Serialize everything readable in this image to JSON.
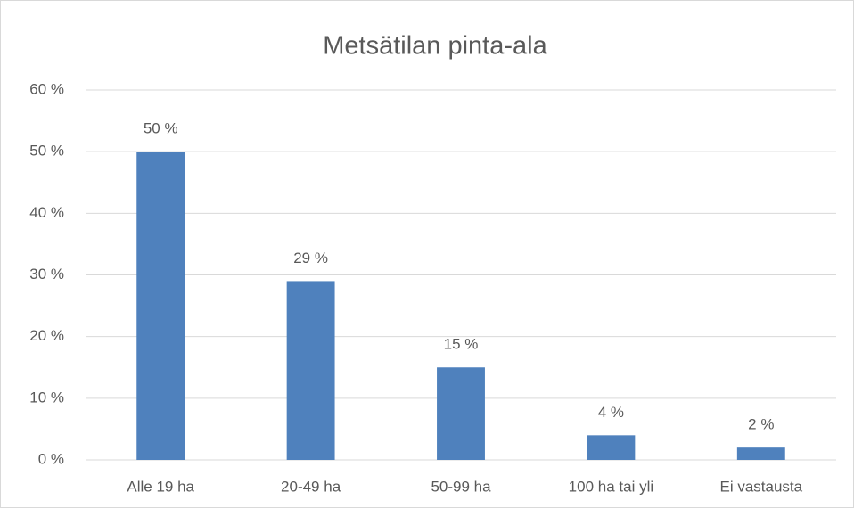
{
  "chart_data": {
    "type": "bar",
    "title": "Metsätilan pinta-ala",
    "categories": [
      "Alle 19 ha",
      "20-49 ha",
      "50-99 ha",
      "100 ha tai yli",
      "Ei vastausta"
    ],
    "values": [
      50,
      29,
      15,
      4,
      2
    ],
    "value_labels": [
      "50 %",
      "29 %",
      "15 %",
      "4 %",
      "2 %"
    ],
    "color": "#4f81bd",
    "ylim": [
      0,
      60
    ],
    "yticks": [
      {
        "value": 0,
        "label": "0 %"
      },
      {
        "value": 10,
        "label": "10 %"
      },
      {
        "value": 20,
        "label": "20 %"
      },
      {
        "value": 30,
        "label": "30 %"
      },
      {
        "value": 40,
        "label": "40 %"
      },
      {
        "value": 50,
        "label": "50 %"
      },
      {
        "value": 60,
        "label": "60 %"
      }
    ],
    "grid": true
  }
}
